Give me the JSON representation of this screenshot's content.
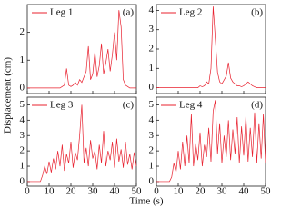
{
  "chart_data": [
    {
      "type": "line",
      "annotation": "(a)",
      "xlim": [
        0,
        50
      ],
      "xticks": [
        0,
        10,
        20,
        30,
        40,
        50
      ],
      "show_xticklabels": false,
      "ylim": [
        -0.2,
        3
      ],
      "yticks": [
        0,
        1,
        2
      ],
      "x": [
        0,
        1,
        2,
        3,
        4,
        5,
        6,
        7,
        8,
        9,
        10,
        11,
        12,
        13,
        14,
        15,
        16,
        17,
        18,
        19,
        20,
        21,
        22,
        23,
        24,
        25,
        26,
        27,
        28,
        29,
        30,
        31,
        32,
        33,
        34,
        35,
        36,
        37,
        38,
        39,
        40,
        41,
        42,
        43,
        44,
        45,
        46,
        47,
        48,
        49,
        50
      ],
      "series": [
        {
          "name": "Leg 1",
          "color": "#e8202e",
          "values": [
            0,
            0,
            0,
            0,
            0,
            0,
            0,
            0,
            0,
            0,
            0,
            0,
            0,
            0,
            0,
            0,
            0.05,
            0.1,
            0.7,
            0.1,
            0.05,
            0.1,
            0.2,
            0.1,
            0.3,
            0.2,
            0.4,
            0.6,
            1.5,
            0.3,
            0.5,
            1.3,
            0.4,
            0.8,
            1.6,
            0.5,
            0.9,
            1.4,
            0.6,
            1.2,
            2.0,
            1.0,
            2.8,
            2.2,
            0.3,
            0.1,
            0.05,
            0,
            0,
            0,
            0
          ]
        }
      ]
    },
    {
      "type": "line",
      "annotation": "(b)",
      "xlim": [
        0,
        50
      ],
      "xticks": [
        0,
        10,
        20,
        30,
        40,
        50
      ],
      "show_xticklabels": false,
      "ylim": [
        -0.3,
        4.3
      ],
      "yticks": [
        0,
        1,
        2,
        3,
        4
      ],
      "x": [
        0,
        1,
        2,
        3,
        4,
        5,
        6,
        7,
        8,
        9,
        10,
        11,
        12,
        13,
        14,
        15,
        16,
        17,
        18,
        19,
        20,
        21,
        22,
        23,
        24,
        25,
        26,
        27,
        28,
        29,
        30,
        31,
        32,
        33,
        34,
        35,
        36,
        37,
        38,
        39,
        40,
        41,
        42,
        43,
        44,
        45,
        46,
        47,
        48,
        49,
        50
      ],
      "series": [
        {
          "name": "Leg 2",
          "color": "#e8202e",
          "values": [
            0,
            0,
            0,
            0,
            0,
            0,
            0,
            0,
            0,
            0,
            0,
            0,
            0,
            0,
            0,
            0,
            0,
            0,
            0,
            0,
            0.1,
            0.05,
            0.1,
            0.3,
            0.2,
            1.0,
            4.2,
            2.5,
            0.8,
            0.3,
            0.2,
            0.4,
            0.6,
            1.3,
            0.5,
            0.3,
            0.2,
            0.1,
            0.1,
            0.05,
            0.1,
            0.2,
            0.3,
            0.2,
            0.1,
            0.05,
            0,
            0,
            0,
            0,
            0
          ]
        }
      ]
    },
    {
      "type": "line",
      "annotation": "(c)",
      "xlim": [
        0,
        50
      ],
      "xticks": [
        0,
        10,
        20,
        30,
        40,
        50
      ],
      "show_xticklabels": true,
      "ylim": [
        -0.3,
        5.5
      ],
      "yticks": [
        0,
        1,
        2,
        3,
        4,
        5
      ],
      "x": [
        0,
        1,
        2,
        3,
        4,
        5,
        6,
        7,
        8,
        9,
        10,
        11,
        12,
        13,
        14,
        15,
        16,
        17,
        18,
        19,
        20,
        21,
        22,
        23,
        24,
        25,
        26,
        27,
        28,
        29,
        30,
        31,
        32,
        33,
        34,
        35,
        36,
        37,
        38,
        39,
        40,
        41,
        42,
        43,
        44,
        45,
        46,
        47,
        48,
        49,
        50
      ],
      "series": [
        {
          "name": "Leg 3",
          "color": "#e8202e",
          "values": [
            0,
            0,
            0,
            0,
            0,
            0,
            0,
            0.4,
            1.0,
            0.5,
            1.3,
            0.6,
            1.5,
            0.8,
            2.0,
            1.0,
            2.4,
            0.7,
            1.8,
            1.2,
            2.6,
            0.9,
            1.9,
            1.4,
            3.0,
            5.0,
            1.2,
            2.2,
            1.0,
            2.7,
            1.5,
            2.0,
            0.8,
            2.4,
            1.2,
            3.3,
            1.0,
            2.0,
            1.4,
            2.6,
            0.9,
            2.8,
            1.3,
            2.1,
            0.9,
            2.6,
            1.1,
            1.8,
            0.8,
            1.9,
            1.0
          ]
        }
      ]
    },
    {
      "type": "line",
      "annotation": "(d)",
      "xlim": [
        0,
        50
      ],
      "xticks": [
        0,
        10,
        20,
        30,
        40,
        50
      ],
      "show_xticklabels": true,
      "ylim": [
        -0.3,
        5.5
      ],
      "yticks": [
        0,
        1,
        2,
        3,
        4,
        5
      ],
      "x": [
        0,
        1,
        2,
        3,
        4,
        5,
        6,
        7,
        8,
        9,
        10,
        11,
        12,
        13,
        14,
        15,
        16,
        17,
        18,
        19,
        20,
        21,
        22,
        23,
        24,
        25,
        26,
        27,
        28,
        29,
        30,
        31,
        32,
        33,
        34,
        35,
        36,
        37,
        38,
        39,
        40,
        41,
        42,
        43,
        44,
        45,
        46,
        47,
        48,
        49,
        50
      ],
      "series": [
        {
          "name": "Leg 4",
          "color": "#e8202e",
          "values": [
            0,
            0,
            0,
            0,
            0,
            0,
            0,
            0.3,
            1.2,
            0.6,
            2.0,
            0.8,
            2.6,
            1.0,
            3.0,
            1.2,
            4.4,
            1.0,
            2.5,
            1.4,
            3.2,
            1.0,
            2.4,
            1.6,
            3.5,
            1.3,
            4.6,
            5.3,
            1.8,
            3.8,
            1.2,
            3.0,
            1.6,
            4.0,
            1.4,
            3.4,
            1.8,
            4.2,
            1.2,
            3.6,
            1.7,
            4.3,
            1.3,
            3.5,
            1.6,
            4.5,
            1.2,
            3.8,
            1.5,
            4.4,
            1.2
          ]
        }
      ]
    }
  ],
  "xlabel": "Time (s)",
  "ylabel": "Displacement (cm)"
}
